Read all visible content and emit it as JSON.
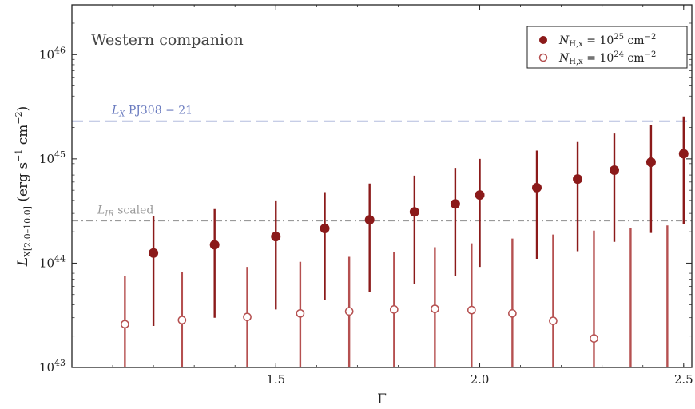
{
  "chart_data": {
    "type": "scatter",
    "title": "Western companion",
    "xlabel": "Γ",
    "ylabel": "L_X[2.0–10.0] (erg s⁻¹ cm⁻²)",
    "xlim": [
      1.0,
      2.52
    ],
    "ylim": [
      1e+43,
      3e+46
    ],
    "yscale": "log",
    "xticks": [
      1.5,
      2.0,
      2.5
    ],
    "xtick_labels": [
      "1.5",
      "2.0",
      "2.5"
    ],
    "yticks": [
      1e+43,
      1e+44,
      1e+45,
      1e+46
    ],
    "ytick_labels": [
      {
        "base": "10",
        "exp": "43"
      },
      {
        "base": "10",
        "exp": "44"
      },
      {
        "base": "10",
        "exp": "45"
      },
      {
        "base": "10",
        "exp": "46"
      }
    ],
    "legend_position": "top-right",
    "grid": false,
    "series": [
      {
        "name": "N_H,x = 10^25 cm^-2",
        "legend_parts": {
          "n": "N",
          "sub": "H,x",
          "eq": " = 10",
          "exp": "25",
          "unit": " cm",
          "unit_exp": "−2"
        },
        "marker": "filled-circle",
        "color": "#8b1a1a",
        "points": [
          {
            "x": 1.2,
            "y": 1.25e+44,
            "ylo": 2.5e+43,
            "yhi": 2.8e+44
          },
          {
            "x": 1.35,
            "y": 1.5e+44,
            "ylo": 3e+43,
            "yhi": 3.3e+44
          },
          {
            "x": 1.5,
            "y": 1.8e+44,
            "ylo": 3.6e+43,
            "yhi": 4e+44
          },
          {
            "x": 1.62,
            "y": 2.15e+44,
            "ylo": 4.4e+43,
            "yhi": 4.8e+44
          },
          {
            "x": 1.73,
            "y": 2.6e+44,
            "ylo": 5.3e+43,
            "yhi": 5.8e+44
          },
          {
            "x": 1.84,
            "y": 3.1e+44,
            "ylo": 6.3e+43,
            "yhi": 6.9e+44
          },
          {
            "x": 1.94,
            "y": 3.7e+44,
            "ylo": 7.5e+43,
            "yhi": 8.2e+44
          },
          {
            "x": 2.0,
            "y": 4.5e+44,
            "ylo": 9.2e+43,
            "yhi": 1e+45
          },
          {
            "x": 2.14,
            "y": 5.3e+44,
            "ylo": 1.1e+44,
            "yhi": 1.2e+45
          },
          {
            "x": 2.24,
            "y": 6.4e+44,
            "ylo": 1.3e+44,
            "yhi": 1.45e+45
          },
          {
            "x": 2.33,
            "y": 7.8e+44,
            "ylo": 1.6e+44,
            "yhi": 1.75e+45
          },
          {
            "x": 2.42,
            "y": 9.3e+44,
            "ylo": 1.95e+44,
            "yhi": 2.1e+45
          },
          {
            "x": 2.5,
            "y": 1.12e+45,
            "ylo": 2.35e+44,
            "yhi": 2.55e+45
          }
        ]
      },
      {
        "name": "N_H,x = 10^24 cm^-2",
        "legend_parts": {
          "n": "N",
          "sub": "H,x",
          "eq": " = 10",
          "exp": "24",
          "unit": " cm",
          "unit_exp": "−2"
        },
        "marker": "open-circle",
        "color": "#b55050",
        "points": [
          {
            "x": 1.13,
            "y": 2.6e+43,
            "ylo": 1e+43,
            "yhi": 7.5e+43
          },
          {
            "x": 1.27,
            "y": 2.85e+43,
            "ylo": 1e+43,
            "yhi": 8.3e+43
          },
          {
            "x": 1.43,
            "y": 3.05e+43,
            "ylo": 1e+43,
            "yhi": 9.2e+43
          },
          {
            "x": 1.56,
            "y": 3.3e+43,
            "ylo": 1e+43,
            "yhi": 1.03e+44
          },
          {
            "x": 1.68,
            "y": 3.45e+43,
            "ylo": 1e+43,
            "yhi": 1.15e+44
          },
          {
            "x": 1.79,
            "y": 3.6e+43,
            "ylo": 1e+43,
            "yhi": 1.28e+44
          },
          {
            "x": 1.89,
            "y": 3.65e+43,
            "ylo": 1e+43,
            "yhi": 1.42e+44
          },
          {
            "x": 1.98,
            "y": 3.55e+43,
            "ylo": 1e+43,
            "yhi": 1.55e+44
          },
          {
            "x": 2.08,
            "y": 3.3e+43,
            "ylo": 1e+43,
            "yhi": 1.72e+44
          },
          {
            "x": 2.18,
            "y": 2.8e+43,
            "ylo": 1e+43,
            "yhi": 1.88e+44
          },
          {
            "x": 2.28,
            "y": 1.9e+43,
            "ylo": 1e+43,
            "yhi": 2.05e+44
          },
          {
            "x": 2.37,
            "y": null,
            "ylo": 1e+43,
            "yhi": 2.18e+44
          },
          {
            "x": 2.46,
            "y": null,
            "ylo": 1e+43,
            "yhi": 2.3e+44
          }
        ]
      }
    ],
    "reference_lines": [
      {
        "label_main": "L",
        "label_sub": "X",
        "label_rest": " PJ308 − 21",
        "y": 2.3e+45,
        "style": "dashed",
        "color": "#6a7bbf"
      },
      {
        "label_main": "L",
        "label_sub": "IR",
        "label_rest": " scaled",
        "y": 2.55e+44,
        "style": "dashdot",
        "color": "#9a9a9a"
      }
    ]
  }
}
